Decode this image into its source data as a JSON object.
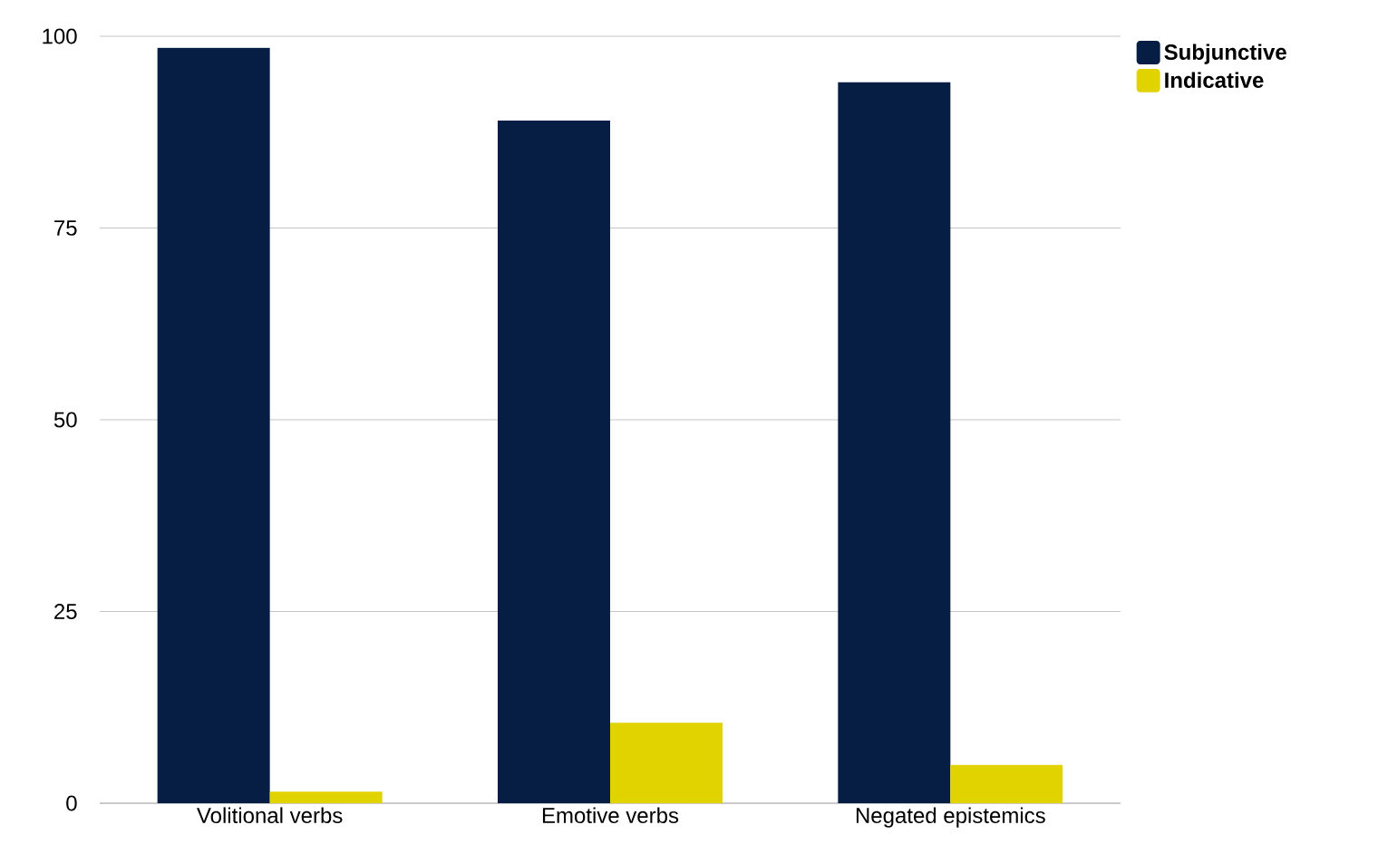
{
  "chart_data": {
    "type": "bar",
    "categories": [
      "Volitional verbs",
      "Emotive verbs",
      "Negated epistemics"
    ],
    "series": [
      {
        "name": "Subjunctive",
        "color": "#061e44",
        "values": [
          98.5,
          89,
          94
        ]
      },
      {
        "name": "Indicative",
        "color": "#e0d300",
        "values": [
          1.5,
          10.5,
          5
        ]
      }
    ],
    "ylim": [
      0,
      100
    ],
    "yticks": [
      0,
      25,
      50,
      75,
      100
    ],
    "grid": "y",
    "legend": "top right"
  }
}
